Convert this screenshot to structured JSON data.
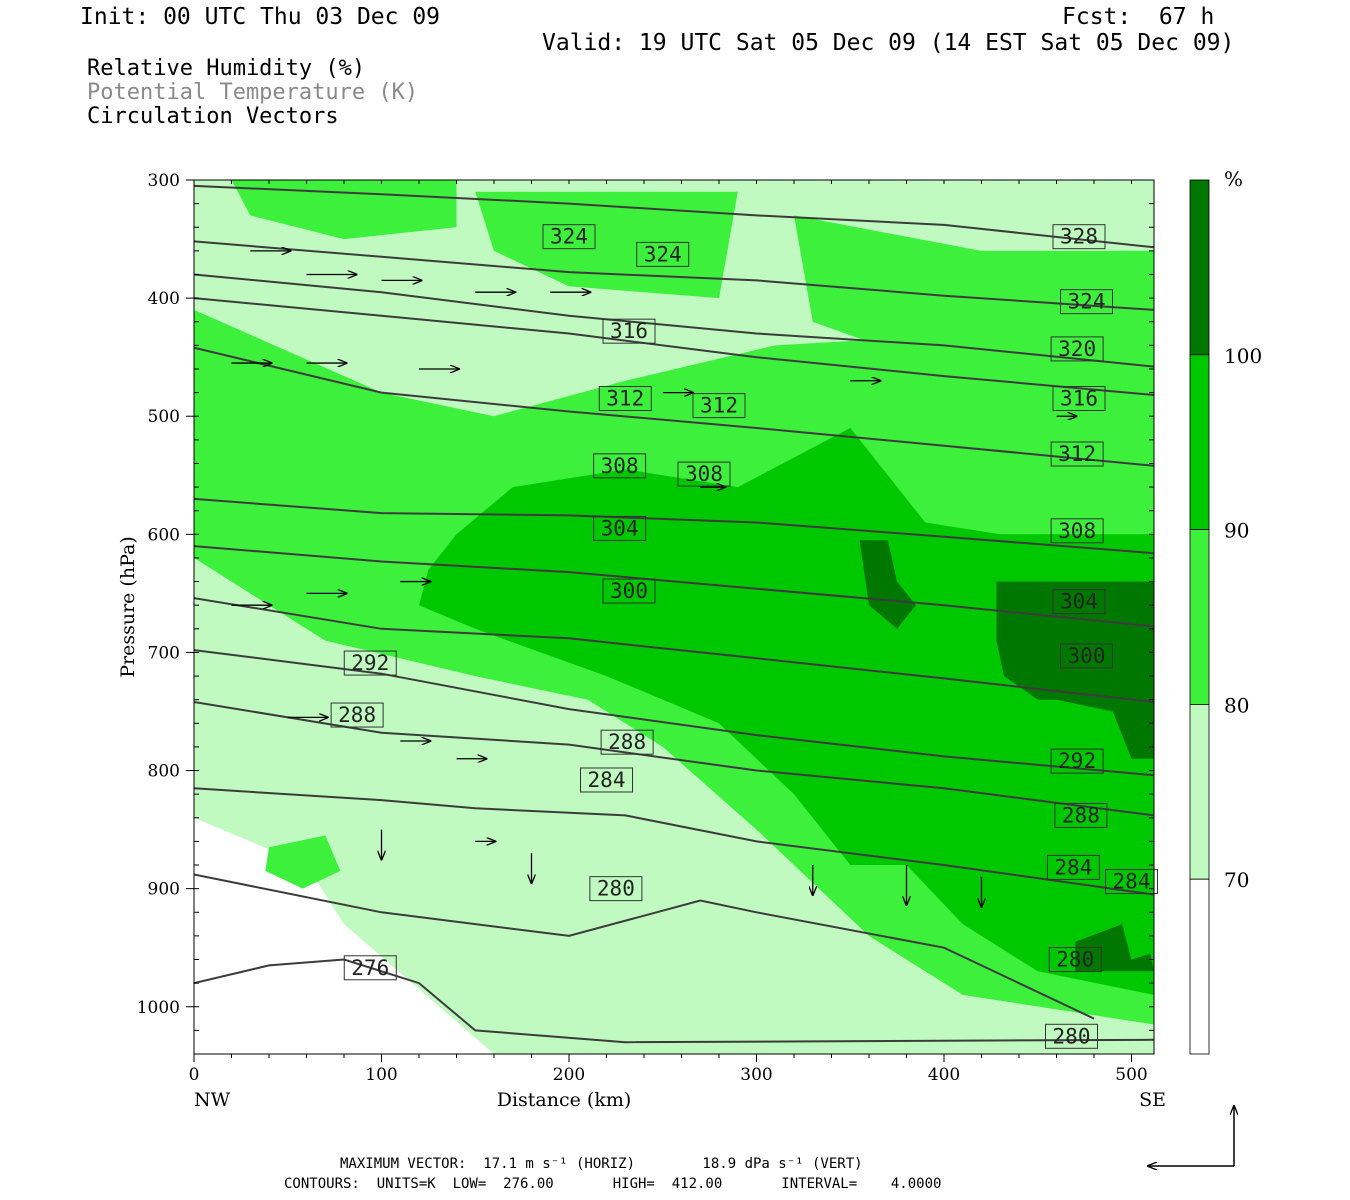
{
  "header": {
    "init": "Init: 00 UTC Thu 03 Dec 09",
    "fcst": "Fcst:  67 h",
    "valid": "Valid: 19 UTC Sat 05 Dec 09 (14 EST Sat 05 Dec 09)"
  },
  "legend_lines": [
    "Relative Humidity (%)",
    "Potential Temperature (K)",
    "Circulation Vectors"
  ],
  "footer": {
    "vector_line": "MAXIMUM VECTOR:  17.1 m s⁻¹ (HORIZ)        18.9 dPa s⁻¹ (VERT)",
    "contour_line": "CONTOURS:  UNITS=K  LOW=  276.00       HIGH=  412.00       INTERVAL=    4.0000"
  },
  "colors": {
    "rh_70_80": "#c0fac0",
    "rh_80_90": "#3cf03c",
    "rh_90_100": "#00c800",
    "rh_100": "#007800",
    "contour": "#3c3c3c"
  },
  "chart_data": {
    "type": "heatmap",
    "subtype": "vertical cross-section: relative humidity shading, potential temperature contours, circulation vectors",
    "xlabel": "Distance (km)",
    "ylabel": "Pressure (hPa)",
    "xlim": [
      0,
      512
    ],
    "ylim": [
      1040,
      300
    ],
    "x_ticks": [
      "0",
      "100",
      "200",
      "300",
      "400",
      "500"
    ],
    "y_ticks": [
      "300",
      "400",
      "500",
      "600",
      "700",
      "800",
      "900",
      "1000"
    ],
    "x_end_labels": {
      "left": "NW",
      "right": "SE"
    },
    "colorbar": {
      "unit_label": "%",
      "levels": [
        "70",
        "80",
        "90",
        "100"
      ],
      "colors": [
        "#ffffff",
        "#c0fac0",
        "#3cf03c",
        "#00c800",
        "#007800"
      ]
    },
    "rh_regions": [
      {
        "class": 1,
        "points": [
          [
            0,
            300
          ],
          [
            512,
            300
          ],
          [
            512,
            1040
          ],
          [
            160,
            1040
          ],
          [
            80,
            930
          ],
          [
            60,
            880
          ],
          [
            0,
            840
          ]
        ]
      },
      {
        "class": 2,
        "points": [
          [
            0,
            410
          ],
          [
            100,
            480
          ],
          [
            160,
            500
          ],
          [
            230,
            470
          ],
          [
            310,
            440
          ],
          [
            420,
            430
          ],
          [
            512,
            400
          ],
          [
            512,
            1015
          ],
          [
            410,
            990
          ],
          [
            360,
            940
          ],
          [
            300,
            850
          ],
          [
            250,
            780
          ],
          [
            210,
            740
          ],
          [
            150,
            720
          ],
          [
            70,
            690
          ],
          [
            0,
            620
          ]
        ]
      },
      {
        "class": 2,
        "points": [
          [
            20,
            300
          ],
          [
            140,
            300
          ],
          [
            140,
            340
          ],
          [
            80,
            350
          ],
          [
            30,
            330
          ]
        ]
      },
      {
        "class": 2,
        "points": [
          [
            150,
            310
          ],
          [
            290,
            310
          ],
          [
            280,
            400
          ],
          [
            200,
            390
          ],
          [
            160,
            360
          ]
        ]
      },
      {
        "class": 2,
        "points": [
          [
            320,
            330
          ],
          [
            420,
            360
          ],
          [
            512,
            360
          ],
          [
            512,
            480
          ],
          [
            400,
            460
          ],
          [
            330,
            420
          ]
        ]
      },
      {
        "class": 2,
        "points": [
          [
            40,
            865
          ],
          [
            70,
            855
          ],
          [
            78,
            885
          ],
          [
            58,
            900
          ],
          [
            38,
            885
          ]
        ]
      },
      {
        "class": 3,
        "points": [
          [
            170,
            560
          ],
          [
            230,
            545
          ],
          [
            290,
            560
          ],
          [
            350,
            510
          ],
          [
            390,
            590
          ],
          [
            430,
            600
          ],
          [
            512,
            600
          ],
          [
            512,
            990
          ],
          [
            450,
            970
          ],
          [
            410,
            930
          ],
          [
            380,
            880
          ],
          [
            350,
            880
          ],
          [
            320,
            820
          ],
          [
            280,
            760
          ],
          [
            220,
            720
          ],
          [
            150,
            680
          ],
          [
            120,
            660
          ],
          [
            125,
            630
          ],
          [
            140,
            600
          ]
        ]
      },
      {
        "class": 4,
        "points": [
          [
            428,
            640
          ],
          [
            512,
            640
          ],
          [
            512,
            790
          ],
          [
            500,
            790
          ],
          [
            490,
            750
          ],
          [
            460,
            740
          ],
          [
            450,
            740
          ],
          [
            432,
            720
          ],
          [
            428,
            690
          ]
        ]
      },
      {
        "class": 4,
        "points": [
          [
            355,
            605
          ],
          [
            370,
            605
          ],
          [
            375,
            640
          ],
          [
            385,
            660
          ],
          [
            375,
            680
          ],
          [
            360,
            660
          ]
        ]
      },
      {
        "class": 4,
        "points": [
          [
            470,
            945
          ],
          [
            495,
            930
          ],
          [
            500,
            960
          ],
          [
            510,
            955
          ],
          [
            512,
            970
          ],
          [
            470,
            970
          ]
        ]
      }
    ],
    "theta_contours": [
      {
        "theta": 328,
        "points": [
          [
            0,
            305
          ],
          [
            100,
            312
          ],
          [
            200,
            320
          ],
          [
            300,
            330
          ],
          [
            400,
            338
          ],
          [
            512,
            357
          ]
        ],
        "label_at": [
          472,
          348
        ]
      },
      {
        "theta": 324,
        "points": [
          [
            0,
            352
          ],
          [
            100,
            365
          ],
          [
            200,
            378
          ],
          [
            300,
            385
          ],
          [
            400,
            398
          ],
          [
            512,
            410
          ]
        ],
        "label_at": [
          [
            200,
            348
          ],
          [
            250,
            363
          ],
          [
            476,
            403
          ]
        ]
      },
      {
        "theta": 320,
        "points": [
          [
            0,
            380
          ],
          [
            100,
            395
          ],
          [
            200,
            415
          ],
          [
            300,
            430
          ],
          [
            400,
            440
          ],
          [
            512,
            458
          ]
        ],
        "label_at": [
          471,
          443
        ]
      },
      {
        "theta": 316,
        "points": [
          [
            0,
            400
          ],
          [
            100,
            415
          ],
          [
            200,
            430
          ],
          [
            300,
            450
          ],
          [
            400,
            466
          ],
          [
            512,
            482
          ]
        ],
        "label_at": [
          [
            232,
            428
          ],
          [
            472,
            485
          ]
        ]
      },
      {
        "theta": 312,
        "points": [
          [
            0,
            442
          ],
          [
            100,
            480
          ],
          [
            200,
            496
          ],
          [
            300,
            510
          ],
          [
            400,
            525
          ],
          [
            512,
            542
          ]
        ],
        "label_at": [
          [
            230,
            485
          ],
          [
            280,
            491
          ],
          [
            471,
            532
          ]
        ]
      },
      {
        "theta": 308,
        "points": [
          [
            0,
            570
          ],
          [
            100,
            582
          ],
          [
            200,
            584
          ],
          [
            300,
            590
          ],
          [
            400,
            602
          ],
          [
            512,
            616
          ]
        ],
        "label_at": [
          [
            227,
            542
          ],
          [
            272,
            549
          ],
          [
            471,
            597
          ]
        ]
      },
      {
        "theta": 304,
        "points": [
          [
            0,
            610
          ],
          [
            100,
            623
          ],
          [
            200,
            632
          ],
          [
            300,
            646
          ],
          [
            400,
            660
          ],
          [
            512,
            678
          ]
        ],
        "label_at": [
          [
            227,
            595
          ],
          [
            472,
            657
          ]
        ]
      },
      {
        "theta": 300,
        "points": [
          [
            0,
            654
          ],
          [
            100,
            680
          ],
          [
            200,
            688
          ],
          [
            300,
            705
          ],
          [
            400,
            722
          ],
          [
            512,
            742
          ]
        ],
        "label_at": [
          [
            232,
            648
          ],
          [
            476,
            703
          ]
        ]
      },
      {
        "theta": 292,
        "points": [
          [
            0,
            698
          ],
          [
            100,
            718
          ],
          [
            200,
            748
          ],
          [
            300,
            770
          ],
          [
            400,
            788
          ],
          [
            512,
            804
          ]
        ],
        "label_at": [
          [
            94,
            709
          ],
          [
            471,
            792
          ]
        ]
      },
      {
        "theta": 288,
        "points": [
          [
            0,
            742
          ],
          [
            100,
            768
          ],
          [
            200,
            778
          ],
          [
            300,
            800
          ],
          [
            400,
            815
          ],
          [
            512,
            838
          ]
        ],
        "label_at": [
          [
            87,
            753
          ],
          [
            231,
            776
          ],
          [
            473,
            838
          ]
        ]
      },
      {
        "theta": 284,
        "points": [
          [
            0,
            815
          ],
          [
            100,
            825
          ],
          [
            150,
            832
          ],
          [
            230,
            838
          ],
          [
            300,
            860
          ],
          [
            400,
            880
          ],
          [
            512,
            905
          ]
        ],
        "label_at": [
          [
            220,
            808
          ],
          [
            469,
            882
          ],
          [
            500,
            894
          ]
        ]
      },
      {
        "theta": 280,
        "points": [
          [
            0,
            888
          ],
          [
            100,
            920
          ],
          [
            200,
            940
          ],
          [
            270,
            910
          ],
          [
            300,
            920
          ],
          [
            400,
            950
          ],
          [
            480,
            1010
          ]
        ],
        "label_at": [
          [
            225,
            900
          ],
          [
            470,
            960
          ],
          [
            468,
            1025
          ]
        ]
      },
      {
        "theta": 276,
        "points": [
          [
            0,
            980
          ],
          [
            40,
            965
          ],
          [
            80,
            960
          ],
          [
            120,
            980
          ],
          [
            150,
            1020
          ],
          [
            230,
            1030
          ],
          [
            512,
            1028
          ]
        ],
        "label_at": [
          94,
          967
        ]
      }
    ],
    "vectors_sample": [
      [
        30,
        360,
        40,
        0
      ],
      [
        60,
        380,
        50,
        0
      ],
      [
        100,
        385,
        40,
        0
      ],
      [
        150,
        395,
        40,
        0
      ],
      [
        190,
        395,
        40,
        0
      ],
      [
        20,
        455,
        40,
        0
      ],
      [
        60,
        455,
        40,
        0
      ],
      [
        120,
        460,
        40,
        0
      ],
      [
        250,
        480,
        30,
        0
      ],
      [
        350,
        470,
        30,
        0
      ],
      [
        460,
        500,
        20,
        0
      ],
      [
        270,
        560,
        25,
        0
      ],
      [
        20,
        660,
        40,
        0
      ],
      [
        60,
        650,
        40,
        0
      ],
      [
        110,
        640,
        30,
        0
      ],
      [
        50,
        755,
        40,
        0
      ],
      [
        110,
        775,
        30,
        0
      ],
      [
        140,
        790,
        30,
        0
      ],
      [
        100,
        850,
        0,
        30
      ],
      [
        150,
        860,
        20,
        0
      ],
      [
        180,
        870,
        0,
        30
      ],
      [
        330,
        880,
        0,
        30
      ],
      [
        380,
        880,
        0,
        40
      ],
      [
        420,
        890,
        0,
        30
      ]
    ],
    "grid": false,
    "legend_position": "colorbar right"
  }
}
